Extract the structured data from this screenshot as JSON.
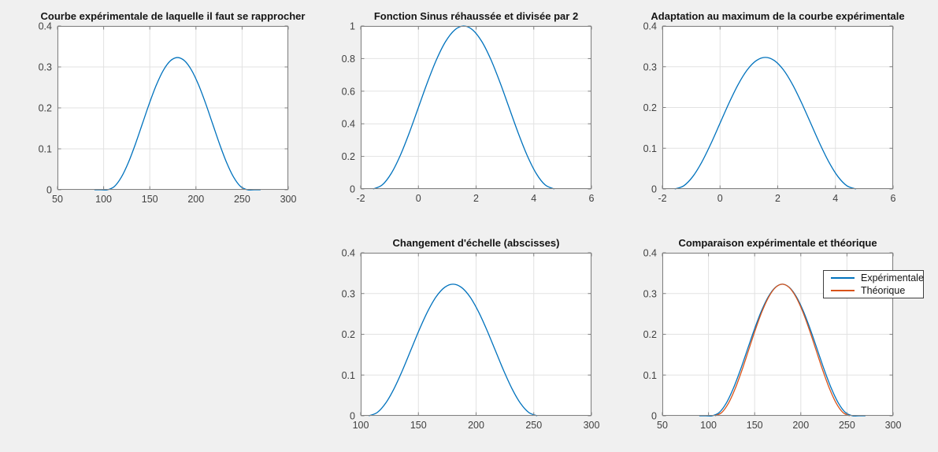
{
  "theme": {
    "figure_bg": "#f0f0f0",
    "plot_bg": "#ffffff",
    "axis_color": "#808080",
    "grid_color": "#e2e2e2",
    "tick_color": "#404040",
    "title_color": "#141414",
    "blue": "#0072BD",
    "orange": "#D95319"
  },
  "chart_data": [
    {
      "id": "p1",
      "type": "line",
      "title": "Courbe expérimentale de laquelle il faut se rapprocher",
      "xlim": [
        50,
        300
      ],
      "ylim": [
        0,
        0.4
      ],
      "xticks": [
        50,
        100,
        150,
        200,
        250,
        300
      ],
      "yticks": [
        0,
        0.1,
        0.2,
        0.3,
        0.4
      ],
      "grid": true,
      "series": [
        {
          "color": "#0072BD",
          "x": [
            90,
            97,
            104,
            111.6,
            119.2,
            126.8,
            134.4,
            142,
            149.6,
            157.2,
            164.8,
            172.4,
            180,
            187.6,
            195.2,
            202.8,
            210.4,
            218,
            225.6,
            233.2,
            240.8,
            248.4,
            256,
            263,
            270
          ],
          "y": [
            0,
            0,
            0,
            0.0079,
            0.0308,
            0.0666,
            0.1116,
            0.1615,
            0.2114,
            0.2564,
            0.2922,
            0.3151,
            0.323,
            0.3151,
            0.2922,
            0.2564,
            0.2114,
            0.1615,
            0.1116,
            0.0666,
            0.0308,
            0.0079,
            0,
            0,
            0
          ]
        }
      ]
    },
    {
      "id": "p2",
      "type": "line",
      "title": "Fonction Sinus réhaussée et divisée par 2",
      "xlim": [
        -2,
        6
      ],
      "ylim": [
        0,
        1
      ],
      "xticks": [
        -2,
        0,
        2,
        4,
        6
      ],
      "yticks": [
        0,
        0.2,
        0.4,
        0.6,
        0.8,
        1
      ],
      "grid": true,
      "series": [
        {
          "color": "#0072BD",
          "x": [
            -1.571,
            -1.257,
            -0.942,
            -0.628,
            -0.314,
            0,
            0.314,
            0.628,
            0.942,
            1.257,
            1.571,
            1.885,
            2.199,
            2.513,
            2.827,
            3.142,
            3.456,
            3.77,
            4.084,
            4.398,
            4.712
          ],
          "y": [
            0,
            0.0245,
            0.0955,
            0.2061,
            0.3455,
            0.5,
            0.6545,
            0.7939,
            0.9045,
            0.9755,
            1,
            0.9755,
            0.9045,
            0.7939,
            0.6545,
            0.5,
            0.3455,
            0.2061,
            0.0955,
            0.0245,
            0
          ]
        }
      ]
    },
    {
      "id": "p3",
      "type": "line",
      "title": "Adaptation au maximum de la courbe expérimentale",
      "xlim": [
        -2,
        6
      ],
      "ylim": [
        0,
        0.4
      ],
      "xticks": [
        -2,
        0,
        2,
        4,
        6
      ],
      "yticks": [
        0,
        0.1,
        0.2,
        0.3,
        0.4
      ],
      "grid": true,
      "series": [
        {
          "color": "#0072BD",
          "x": [
            -1.571,
            -1.257,
            -0.942,
            -0.628,
            -0.314,
            0,
            0.314,
            0.628,
            0.942,
            1.257,
            1.571,
            1.885,
            2.199,
            2.513,
            2.827,
            3.142,
            3.456,
            3.77,
            4.084,
            4.398,
            4.712
          ],
          "y": [
            0,
            0.0079,
            0.0308,
            0.0666,
            0.1116,
            0.1615,
            0.2114,
            0.2564,
            0.2922,
            0.3151,
            0.323,
            0.3151,
            0.2922,
            0.2564,
            0.2114,
            0.1615,
            0.1116,
            0.0666,
            0.0308,
            0.0079,
            0
          ]
        }
      ]
    },
    {
      "id": "p4",
      "type": "line",
      "title": "Changement d'échelle (abscisses)",
      "xlim": [
        100,
        300
      ],
      "ylim": [
        0,
        0.4
      ],
      "xticks": [
        100,
        150,
        200,
        250,
        300
      ],
      "yticks": [
        0,
        0.1,
        0.2,
        0.3,
        0.4
      ],
      "grid": true,
      "series": [
        {
          "color": "#0072BD",
          "x": [
            107,
            114.3,
            121.6,
            128.9,
            136.2,
            143.5,
            150.8,
            158.1,
            165.4,
            172.7,
            180,
            187.3,
            194.6,
            201.9,
            209.2,
            216.5,
            223.8,
            231.1,
            238.4,
            245.7,
            253
          ],
          "y": [
            0,
            0.0079,
            0.0308,
            0.0666,
            0.1116,
            0.1615,
            0.2114,
            0.2564,
            0.2922,
            0.3151,
            0.323,
            0.3151,
            0.2922,
            0.2564,
            0.2114,
            0.1615,
            0.1116,
            0.0666,
            0.0308,
            0.0079,
            0
          ]
        }
      ]
    },
    {
      "id": "p5",
      "type": "line",
      "title": "Comparaison expérimentale et théorique",
      "xlim": [
        50,
        300
      ],
      "ylim": [
        0,
        0.4
      ],
      "xticks": [
        50,
        100,
        150,
        200,
        250,
        300
      ],
      "yticks": [
        0,
        0.1,
        0.2,
        0.3,
        0.4
      ],
      "grid": true,
      "legend": {
        "location": "northeast",
        "entries": [
          {
            "label": "Expérimentale"
          },
          {
            "label": "Théorique"
          }
        ]
      },
      "series": [
        {
          "name": "Expérimentale",
          "color": "#0072BD",
          "x": [
            90,
            97,
            104,
            111.6,
            119.2,
            126.8,
            134.4,
            142,
            149.6,
            157.2,
            164.8,
            172.4,
            180,
            187.6,
            195.2,
            202.8,
            210.4,
            218,
            225.6,
            233.2,
            240.8,
            248.4,
            256,
            263,
            270
          ],
          "y": [
            0,
            0,
            0,
            0.0079,
            0.0308,
            0.0666,
            0.1116,
            0.1615,
            0.2114,
            0.2564,
            0.2922,
            0.3151,
            0.323,
            0.3151,
            0.2922,
            0.2564,
            0.2114,
            0.1615,
            0.1116,
            0.0666,
            0.0308,
            0.0079,
            0,
            0,
            0
          ]
        },
        {
          "name": "Théorique",
          "color": "#D95319",
          "x": [
            107,
            114.3,
            121.6,
            128.9,
            136.2,
            143.5,
            150.8,
            158.1,
            165.4,
            172.7,
            180,
            187.3,
            194.6,
            201.9,
            209.2,
            216.5,
            223.8,
            231.1,
            238.4,
            245.7,
            253
          ],
          "y": [
            0,
            0.0079,
            0.0308,
            0.0666,
            0.1116,
            0.1615,
            0.2114,
            0.2564,
            0.2922,
            0.3151,
            0.323,
            0.3151,
            0.2922,
            0.2564,
            0.2114,
            0.1615,
            0.1116,
            0.0666,
            0.0308,
            0.0079,
            0
          ]
        }
      ]
    }
  ]
}
